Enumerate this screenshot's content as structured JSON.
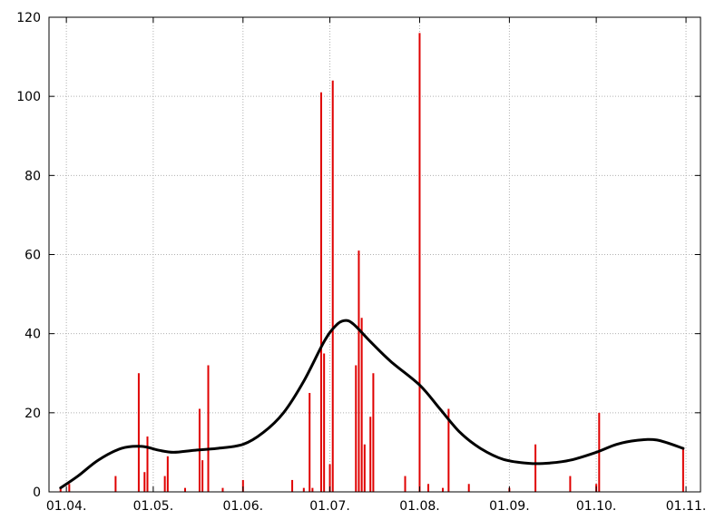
{
  "chart_data": {
    "type": "bar",
    "title": "",
    "xlabel": "",
    "ylabel": "",
    "xlim": [
      "2013-03-26",
      "2013-11-06"
    ],
    "ylim": [
      0,
      120
    ],
    "grid": true,
    "x_ticks": [
      {
        "date": "2013-04-01",
        "label": "01.04."
      },
      {
        "date": "2013-05-01",
        "label": "01.05."
      },
      {
        "date": "2013-06-01",
        "label": "01.06."
      },
      {
        "date": "2013-07-01",
        "label": "01.07."
      },
      {
        "date": "2013-08-01",
        "label": "01.08."
      },
      {
        "date": "2013-09-01",
        "label": "01.09."
      },
      {
        "date": "2013-10-01",
        "label": "01.10."
      },
      {
        "date": "2013-11-01",
        "label": "01.11."
      }
    ],
    "y_ticks": [
      0,
      20,
      40,
      60,
      80,
      100,
      120
    ],
    "colors": {
      "bars": "#e00000",
      "curve": "#000000",
      "grid": "#b0b0b0"
    },
    "series": [
      {
        "type": "bar",
        "points": [
          [
            "2013-03-30",
            1
          ],
          [
            "2013-04-02",
            2
          ],
          [
            "2013-04-18",
            4
          ],
          [
            "2013-04-26",
            30
          ],
          [
            "2013-04-28",
            5
          ],
          [
            "2013-04-29",
            14
          ],
          [
            "2013-05-05",
            4
          ],
          [
            "2013-05-06",
            9
          ],
          [
            "2013-05-12",
            1
          ],
          [
            "2013-05-17",
            21
          ],
          [
            "2013-05-18",
            8
          ],
          [
            "2013-05-20",
            32
          ],
          [
            "2013-05-25",
            1
          ],
          [
            "2013-06-01",
            3
          ],
          [
            "2013-06-18",
            3
          ],
          [
            "2013-06-22",
            1
          ],
          [
            "2013-06-24",
            25
          ],
          [
            "2013-06-25",
            1
          ],
          [
            "2013-06-28",
            101
          ],
          [
            "2013-06-29",
            35
          ],
          [
            "2013-07-01",
            7
          ],
          [
            "2013-07-02",
            104
          ],
          [
            "2013-07-10",
            32
          ],
          [
            "2013-07-11",
            61
          ],
          [
            "2013-07-12",
            44
          ],
          [
            "2013-07-13",
            12
          ],
          [
            "2013-07-15",
            19
          ],
          [
            "2013-07-16",
            30
          ],
          [
            "2013-07-27",
            4
          ],
          [
            "2013-08-01",
            116
          ],
          [
            "2013-08-04",
            2
          ],
          [
            "2013-08-09",
            1
          ],
          [
            "2013-08-11",
            21
          ],
          [
            "2013-08-18",
            2
          ],
          [
            "2013-09-01",
            1
          ],
          [
            "2013-09-10",
            12
          ],
          [
            "2013-09-22",
            4
          ],
          [
            "2013-10-01",
            2
          ],
          [
            "2013-10-02",
            20
          ],
          [
            "2013-10-31",
            11
          ]
        ]
      },
      {
        "type": "line",
        "points": [
          [
            "2013-03-30",
            1
          ],
          [
            "2013-04-05",
            4
          ],
          [
            "2013-04-12",
            8
          ],
          [
            "2013-04-20",
            11
          ],
          [
            "2013-04-27",
            11.5
          ],
          [
            "2013-05-03",
            10.5
          ],
          [
            "2013-05-08",
            10
          ],
          [
            "2013-05-15",
            10.5
          ],
          [
            "2013-05-23",
            11
          ],
          [
            "2013-06-01",
            12
          ],
          [
            "2013-06-08",
            15
          ],
          [
            "2013-06-15",
            20
          ],
          [
            "2013-06-22",
            28
          ],
          [
            "2013-06-29",
            38
          ],
          [
            "2013-07-03",
            42
          ],
          [
            "2013-07-06",
            43.3
          ],
          [
            "2013-07-09",
            42.5
          ],
          [
            "2013-07-15",
            38
          ],
          [
            "2013-07-22",
            33
          ],
          [
            "2013-08-01",
            27
          ],
          [
            "2013-08-08",
            21
          ],
          [
            "2013-08-15",
            15
          ],
          [
            "2013-08-22",
            11
          ],
          [
            "2013-08-30",
            8.2
          ],
          [
            "2013-09-08",
            7.2
          ],
          [
            "2013-09-15",
            7.3
          ],
          [
            "2013-09-22",
            8
          ],
          [
            "2013-10-01",
            10
          ],
          [
            "2013-10-08",
            12
          ],
          [
            "2013-10-15",
            13
          ],
          [
            "2013-10-22",
            13.1
          ],
          [
            "2013-10-31",
            11
          ]
        ]
      }
    ]
  }
}
